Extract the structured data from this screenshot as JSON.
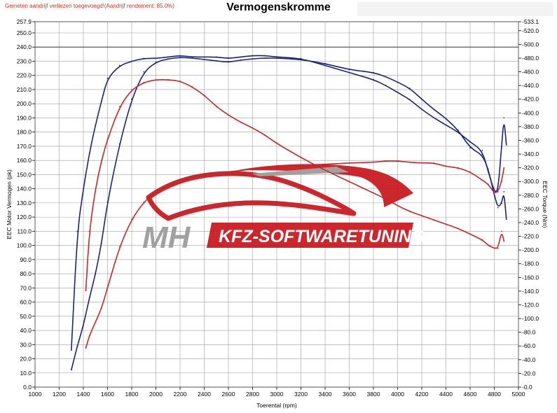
{
  "header": {
    "notice": "Gemeten aandrijf verliezen toegevoegd!(Aandrijf rendement: 85.0%)",
    "title": "Vermogenskromme"
  },
  "watermark": {
    "logo_letters": "MH",
    "brand_text": "KFZ-SOFTWARETUNING",
    "colors": {
      "red": "#c8151b",
      "grey": "#9a9a9a"
    }
  },
  "chart_data": {
    "type": "line",
    "title": "Vermogenskromme",
    "xlabel": "Toerental (rpm)",
    "ylabel_left": "EEC Motor Vermogen (pk)",
    "ylabel_right": "EEC Torque (Nm)",
    "xlim": [
      1000,
      5000
    ],
    "ylim_left": [
      0,
      257.9
    ],
    "ylim_right": [
      0,
      533.1
    ],
    "grid": true,
    "x_ticks": [
      "1000",
      "1200",
      "1400",
      "1600",
      "1800",
      "2000",
      "2200",
      "2400",
      "2600",
      "2800",
      "3000",
      "3200",
      "3400",
      "3600",
      "3800",
      "4000",
      "4200",
      "4400",
      "4600",
      "4800",
      "5000"
    ],
    "y_left_ticks": [
      "0.0",
      "10.0",
      "20.0",
      "30.0",
      "40.0",
      "50.0",
      "60.0",
      "70.0",
      "80.0",
      "90.0",
      "100.0",
      "110.0",
      "120.0",
      "130.0",
      "140.0",
      "150.0",
      "160.0",
      "170.0",
      "180.0",
      "190.0",
      "200.0",
      "210.0",
      "220.0",
      "230.0",
      "240.0",
      "250.0",
      "257.9"
    ],
    "y_right_ticks": [
      "0.0",
      "20.0",
      "40.0",
      "60.0",
      "80.0",
      "100.0",
      "120.0",
      "140.0",
      "160.0",
      "180.0",
      "200.0",
      "220.0",
      "240.0",
      "260.0",
      "280.0",
      "300.0",
      "320.0",
      "340.0",
      "360.0",
      "380.0",
      "400.0",
      "420.0",
      "440.0",
      "460.0",
      "480.0",
      "500.0",
      "520.0",
      "533.1"
    ],
    "reference_line_left": 240,
    "series": [
      {
        "color": "#1a237e",
        "axis": "right",
        "x": [
          1300,
          1350,
          1400,
          1450,
          1500,
          1550,
          1600,
          1700,
          1800,
          1900,
          2000,
          2100,
          2200,
          2300,
          2400,
          2500,
          2600,
          2700,
          2800,
          2900,
          3000,
          3200,
          3400,
          3600,
          3800,
          3900,
          4000,
          4100,
          4200,
          4300,
          4400,
          4500,
          4600,
          4700,
          4750,
          4800,
          4830,
          4860,
          4880,
          4900
        ],
        "y": [
          25,
          60,
          90,
          130,
          165,
          210,
          270,
          355,
          420,
          460,
          474,
          479,
          481,
          480,
          478,
          476,
          474,
          477,
          479,
          480,
          480,
          478,
          472,
          463,
          459,
          453,
          445,
          436,
          420,
          405,
          392,
          375,
          349,
          339,
          318,
          280,
          262,
          268,
          285,
          245
        ]
      },
      {
        "color": "#1a237e",
        "axis": "left",
        "x": [
          1300,
          1350,
          1400,
          1450,
          1500,
          1550,
          1600,
          1700,
          1800,
          1900,
          2000,
          2100,
          2200,
          2300,
          2400,
          2500,
          2600,
          2700,
          2800,
          2900,
          3000,
          3200,
          3400,
          3600,
          3800,
          3900,
          4000,
          4100,
          4200,
          4300,
          4400,
          4500,
          4600,
          4700,
          4750,
          4800,
          4830,
          4860,
          4880,
          4900
        ],
        "y": [
          26,
          110,
          140,
          165,
          185,
          202,
          218,
          227,
          230,
          232,
          232,
          233,
          234,
          233,
          233,
          233,
          232,
          233,
          234,
          234,
          233,
          232,
          227,
          222,
          217,
          213,
          208,
          203,
          196,
          190,
          185,
          180,
          173,
          167,
          152,
          138,
          138,
          170,
          190,
          171
        ]
      },
      {
        "color": "#c62828",
        "axis": "right",
        "x": [
          1420,
          1450,
          1500,
          1550,
          1600,
          1700,
          1800,
          1900,
          2000,
          2100,
          2200,
          2300,
          2400,
          2500,
          2600,
          2700,
          2800,
          2900,
          3000,
          3200,
          3400,
          3600,
          3800,
          3900,
          4000,
          4100,
          4200,
          4300,
          4400,
          4500,
          4600,
          4700,
          4750,
          4800,
          4830,
          4860,
          4880
        ],
        "y": [
          57,
          75,
          95,
          115,
          145,
          205,
          245,
          270,
          285,
          295,
          300,
          306,
          310,
          312,
          314,
          316,
          318,
          320,
          321,
          324,
          325,
          327,
          328,
          330,
          330,
          328,
          327,
          327,
          322,
          320,
          314,
          302,
          296,
          283,
          285,
          300,
          320
        ]
      },
      {
        "color": "#c62828",
        "axis": "left",
        "x": [
          1420,
          1450,
          1500,
          1550,
          1600,
          1700,
          1800,
          1900,
          2000,
          2100,
          2200,
          2300,
          2400,
          2500,
          2600,
          2700,
          2800,
          2900,
          3000,
          3200,
          3400,
          3600,
          3800,
          3900,
          4000,
          4100,
          4200,
          4300,
          4400,
          4500,
          4600,
          4700,
          4750,
          4800,
          4830,
          4860,
          4880
        ],
        "y": [
          68,
          110,
          140,
          160,
          175,
          198,
          210,
          215,
          217,
          217,
          216,
          212,
          206,
          198,
          192,
          187,
          183,
          178,
          172,
          162,
          153,
          145,
          137,
          133,
          128,
          124,
          121,
          118,
          115,
          112,
          108,
          104,
          100,
          98,
          98,
          110,
          103
        ]
      }
    ]
  }
}
